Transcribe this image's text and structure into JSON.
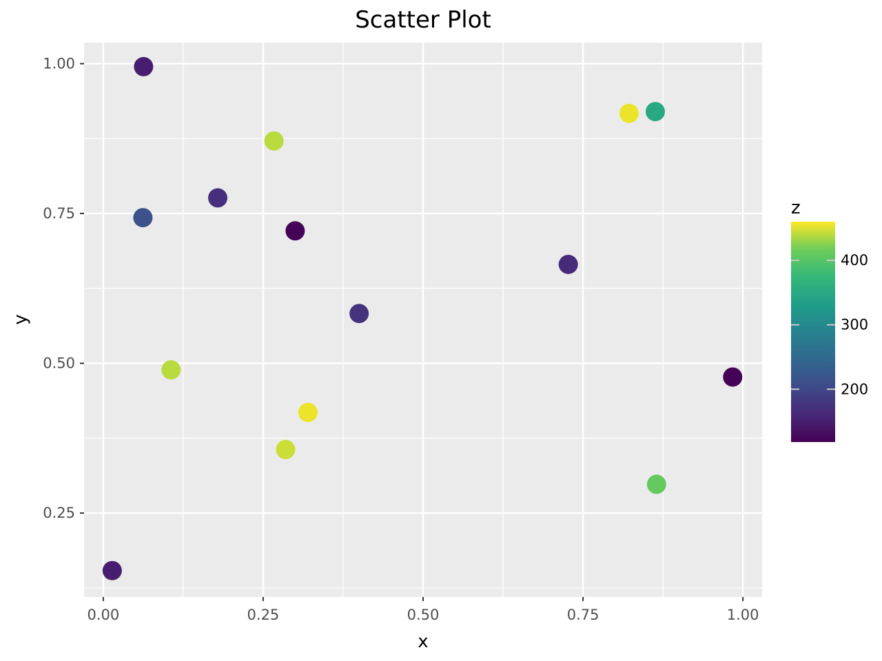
{
  "chart_data": {
    "type": "scatter",
    "title": "Scatter Plot",
    "xlabel": "x",
    "ylabel": "y",
    "xlim": [
      -0.03,
      1.03
    ],
    "ylim": [
      0.11,
      1.035
    ],
    "x_ticks": [
      {
        "value": 0.0,
        "label": "0.00"
      },
      {
        "value": 0.25,
        "label": "0.25"
      },
      {
        "value": 0.5,
        "label": "0.50"
      },
      {
        "value": 0.75,
        "label": "0.75"
      },
      {
        "value": 1.0,
        "label": "1.00"
      }
    ],
    "y_ticks": [
      {
        "value": 0.25,
        "label": "0.25"
      },
      {
        "value": 0.5,
        "label": "0.50"
      },
      {
        "value": 0.75,
        "label": "0.75"
      },
      {
        "value": 1.0,
        "label": "1.00"
      }
    ],
    "grid": true,
    "panel_background": "#EBEBEB",
    "grid_color": "#FFFFFF",
    "colorbar": {
      "title": "z",
      "min": 118,
      "max": 460,
      "ticks": [
        {
          "value": 200,
          "label": "200"
        },
        {
          "value": 300,
          "label": "300"
        },
        {
          "value": 400,
          "label": "400"
        }
      ],
      "colormap": "viridis",
      "placement": "right"
    },
    "points": [
      {
        "x": 0.063,
        "y": 0.995,
        "z": 150
      },
      {
        "x": 0.267,
        "y": 0.871,
        "z": 440
      },
      {
        "x": 0.179,
        "y": 0.776,
        "z": 170
      },
      {
        "x": 0.062,
        "y": 0.743,
        "z": 215
      },
      {
        "x": 0.3,
        "y": 0.721,
        "z": 120
      },
      {
        "x": 0.4,
        "y": 0.583,
        "z": 175
      },
      {
        "x": 0.106,
        "y": 0.489,
        "z": 440
      },
      {
        "x": 0.32,
        "y": 0.418,
        "z": 455
      },
      {
        "x": 0.285,
        "y": 0.356,
        "z": 445
      },
      {
        "x": 0.014,
        "y": 0.154,
        "z": 150
      },
      {
        "x": 0.822,
        "y": 0.917,
        "z": 455
      },
      {
        "x": 0.863,
        "y": 0.92,
        "z": 350
      },
      {
        "x": 0.727,
        "y": 0.665,
        "z": 165
      },
      {
        "x": 0.984,
        "y": 0.477,
        "z": 120
      },
      {
        "x": 0.865,
        "y": 0.298,
        "z": 410
      }
    ]
  }
}
